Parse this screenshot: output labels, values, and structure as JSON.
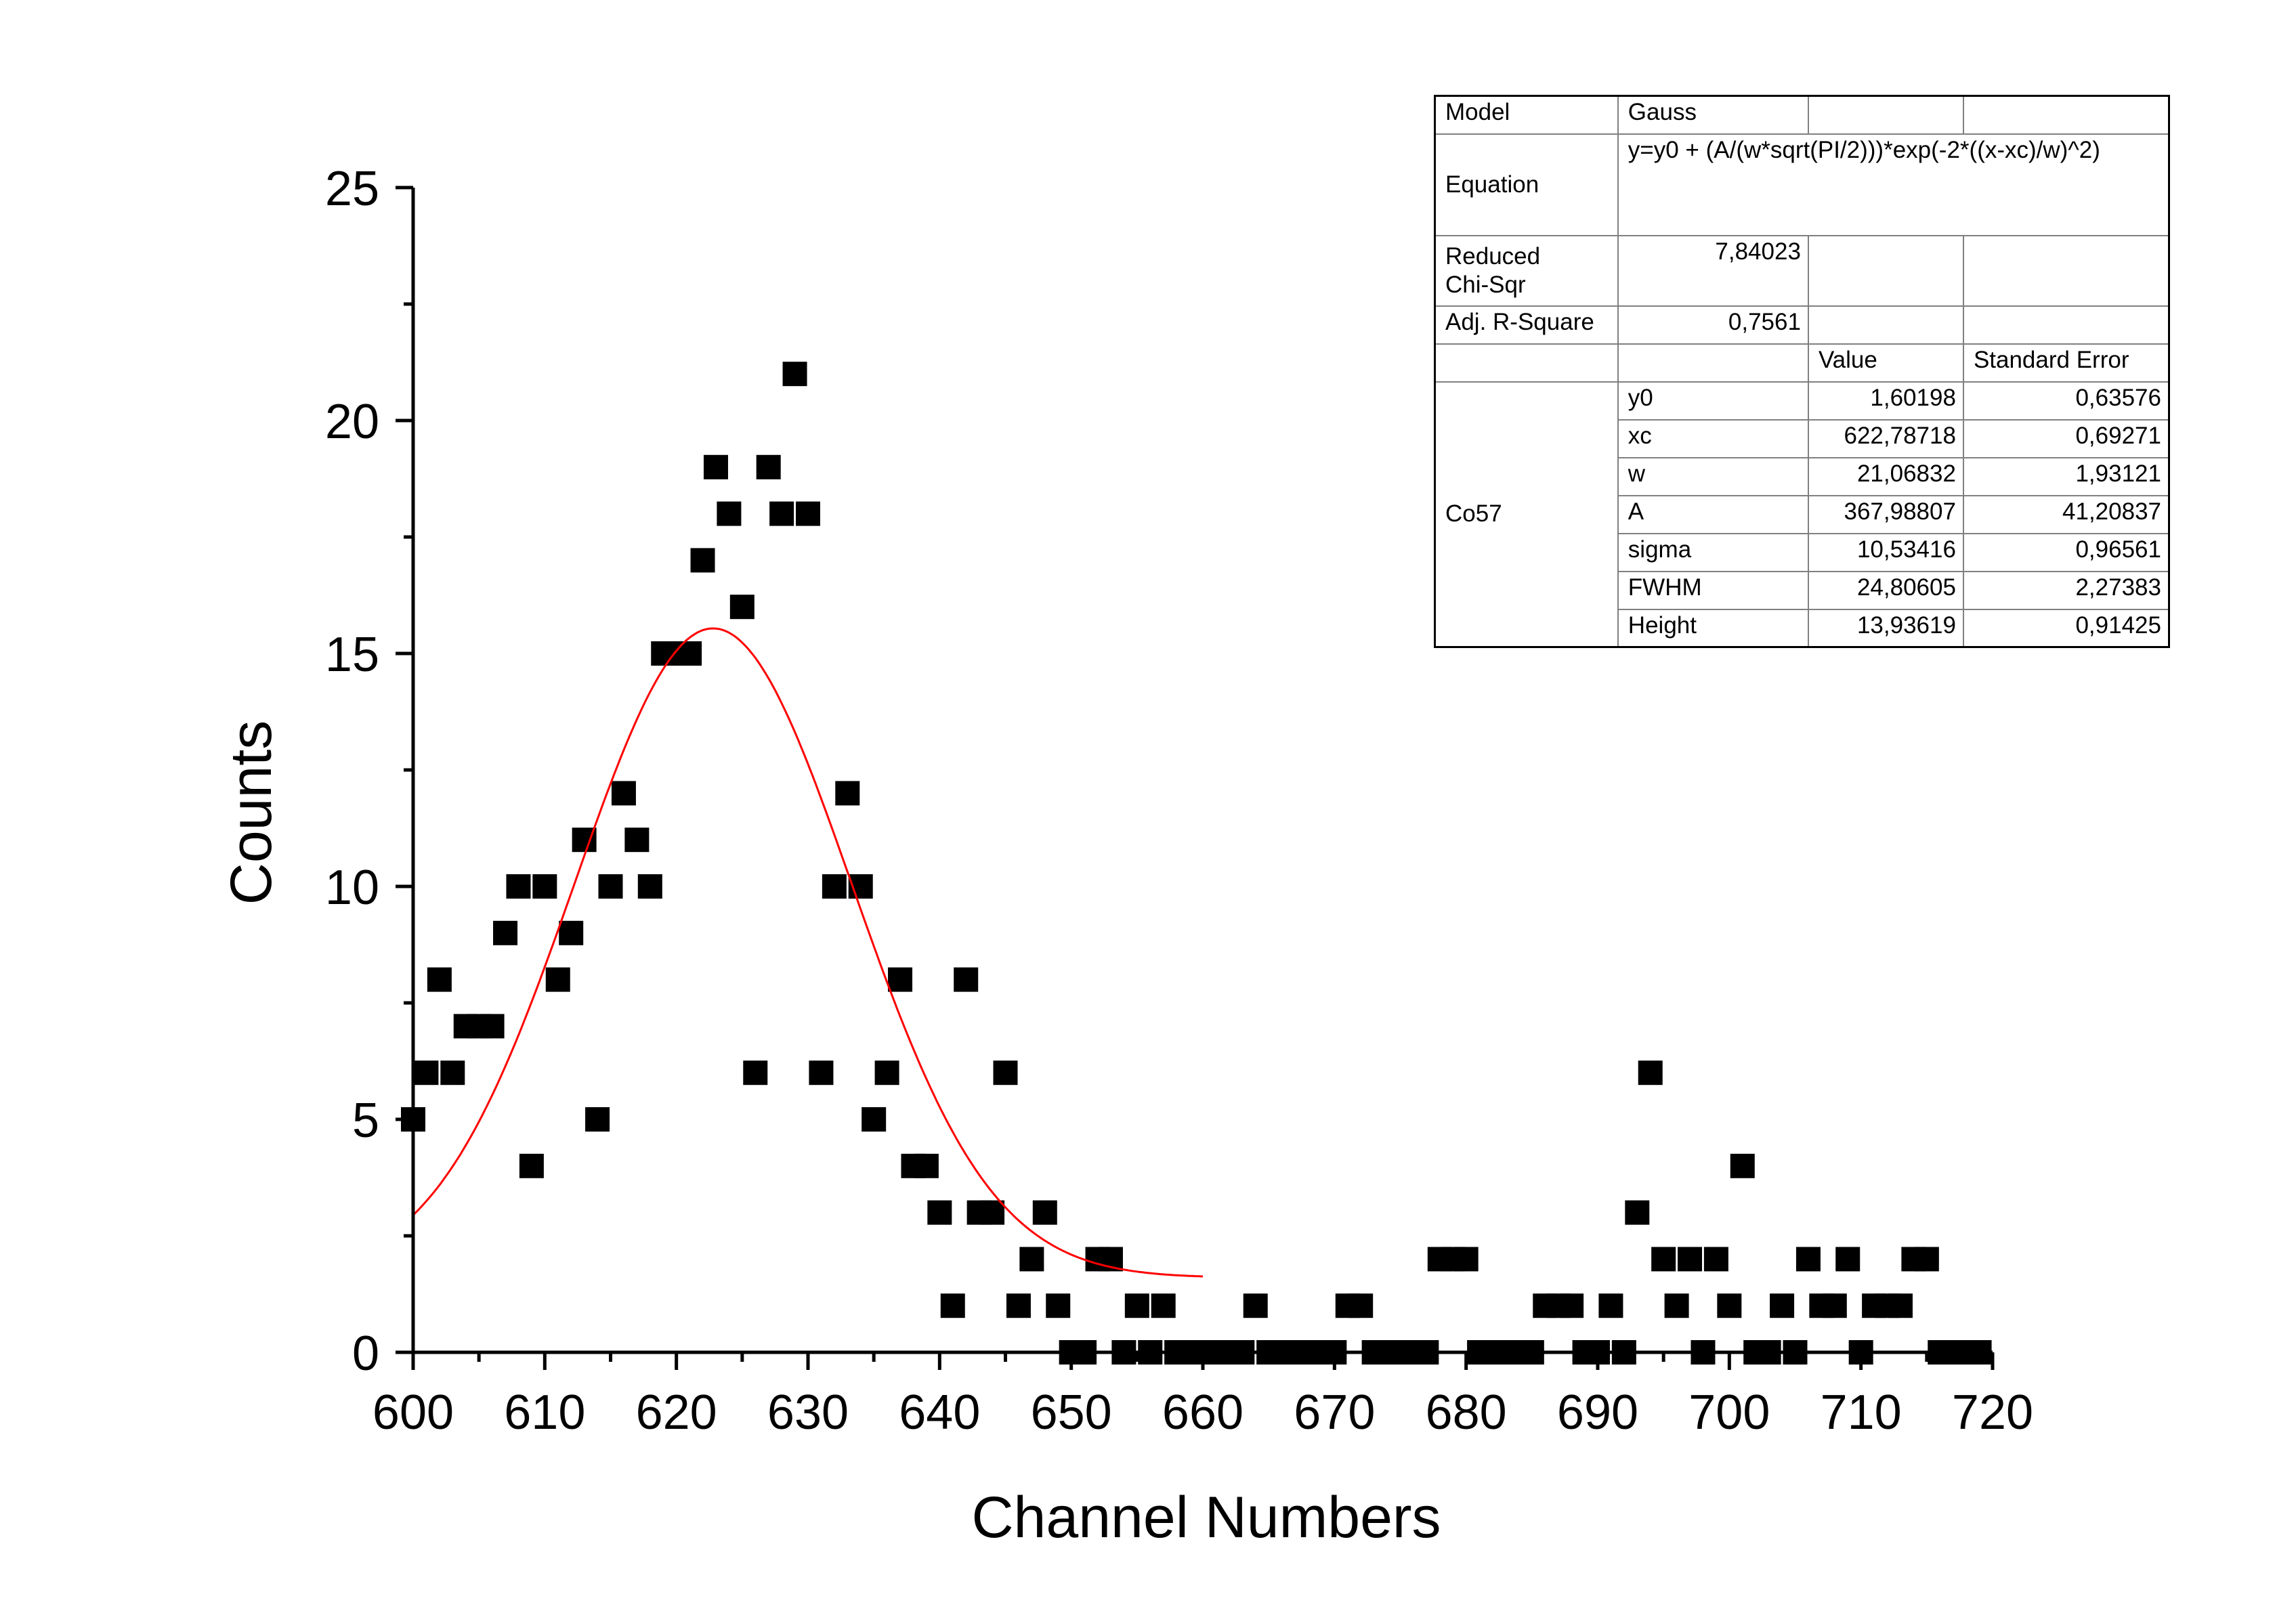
{
  "chart_data": {
    "type": "scatter",
    "xlabel": "Channel Numbers",
    "ylabel": "Counts",
    "xlim": [
      600,
      720
    ],
    "ylim": [
      0,
      25
    ],
    "x_ticks": [
      600,
      610,
      620,
      630,
      640,
      650,
      660,
      670,
      680,
      690,
      700,
      710,
      720
    ],
    "y_ticks": [
      0,
      5,
      10,
      15,
      20,
      25
    ],
    "grid": false,
    "series": [
      {
        "marker": "square",
        "color": "#000000",
        "x": [
          600,
          601,
          602,
          603,
          604,
          605,
          606,
          607,
          608,
          609,
          610,
          611,
          612,
          613,
          614,
          615,
          616,
          617,
          618,
          619,
          620,
          621,
          622,
          623,
          624,
          625,
          626,
          627,
          628,
          629,
          630,
          631,
          632,
          633,
          634,
          635,
          636,
          637,
          638,
          639,
          640,
          641,
          642,
          643,
          644,
          645,
          646,
          647,
          648,
          649,
          650,
          651,
          652,
          653,
          654,
          655,
          656,
          657,
          658,
          659,
          660,
          661,
          662,
          663,
          664,
          665,
          666,
          667,
          668,
          669,
          670,
          671,
          672,
          673,
          674,
          675,
          676,
          677,
          678,
          679,
          680,
          681,
          682,
          683,
          684,
          685,
          686,
          687,
          688,
          689,
          690,
          691,
          692,
          693,
          694,
          695,
          696,
          697,
          698,
          699,
          700,
          701,
          702,
          703,
          704,
          705,
          706,
          707,
          708,
          709,
          710,
          711,
          712,
          713,
          714,
          715,
          716,
          717,
          718,
          719
        ],
        "y": [
          5,
          6,
          8,
          6,
          7,
          7,
          7,
          9,
          10,
          4,
          10,
          8,
          9,
          11,
          5,
          10,
          12,
          11,
          10,
          15,
          15,
          15,
          17,
          19,
          18,
          16,
          6,
          19,
          18,
          21,
          18,
          6,
          10,
          12,
          10,
          5,
          6,
          8,
          4,
          4,
          3,
          1,
          8,
          3,
          3,
          6,
          1,
          2,
          3,
          1,
          0,
          0,
          2,
          2,
          0,
          1,
          0,
          1,
          0,
          0,
          0,
          0,
          0,
          0,
          1,
          0,
          0,
          0,
          0,
          0,
          0,
          1,
          1,
          0,
          0,
          0,
          0,
          0,
          2,
          2,
          2,
          0,
          0,
          0,
          0,
          0,
          1,
          1,
          1,
          0,
          0,
          1,
          0,
          3,
          6,
          2,
          1,
          2,
          0,
          2,
          1,
          4,
          0,
          0,
          1,
          0,
          2,
          1,
          1,
          2,
          0,
          1,
          1,
          1,
          2,
          2,
          0,
          0,
          0,
          0
        ]
      },
      {
        "type": "line",
        "color": "#ff0000",
        "fit": {
          "model": "gauss",
          "y0": 1.60198,
          "xc": 622.78718,
          "w": 21.06832,
          "A": 367.98807,
          "x_range": [
            600,
            660
          ]
        }
      }
    ]
  },
  "fit_table": {
    "model_label": "Model",
    "model_value": "Gauss",
    "equation_label": "Equation",
    "equation_value": "y=y0 + (A/(w*sqrt(PI/2)))*exp(-2*((x-xc)/w)^2)",
    "chi_label_1": "Reduced",
    "chi_label_2": "Chi-Sqr",
    "chi_value": "7,84023",
    "r2_label": "Adj. R-Square",
    "r2_value": "0,7561",
    "value_header": "Value",
    "error_header": "Standard Error",
    "group_label": "Co57",
    "params": [
      {
        "name": "y0",
        "value": "1,60198",
        "error": "0,63576"
      },
      {
        "name": "xc",
        "value": "622,78718",
        "error": "0,69271"
      },
      {
        "name": "w",
        "value": "21,06832",
        "error": "1,93121"
      },
      {
        "name": "A",
        "value": "367,98807",
        "error": "41,20837"
      },
      {
        "name": "sigma",
        "value": "10,53416",
        "error": "0,96561"
      },
      {
        "name": "FWHM",
        "value": "24,80605",
        "error": "2,27383"
      },
      {
        "name": "Height",
        "value": "13,93619",
        "error": "0,91425"
      }
    ]
  }
}
